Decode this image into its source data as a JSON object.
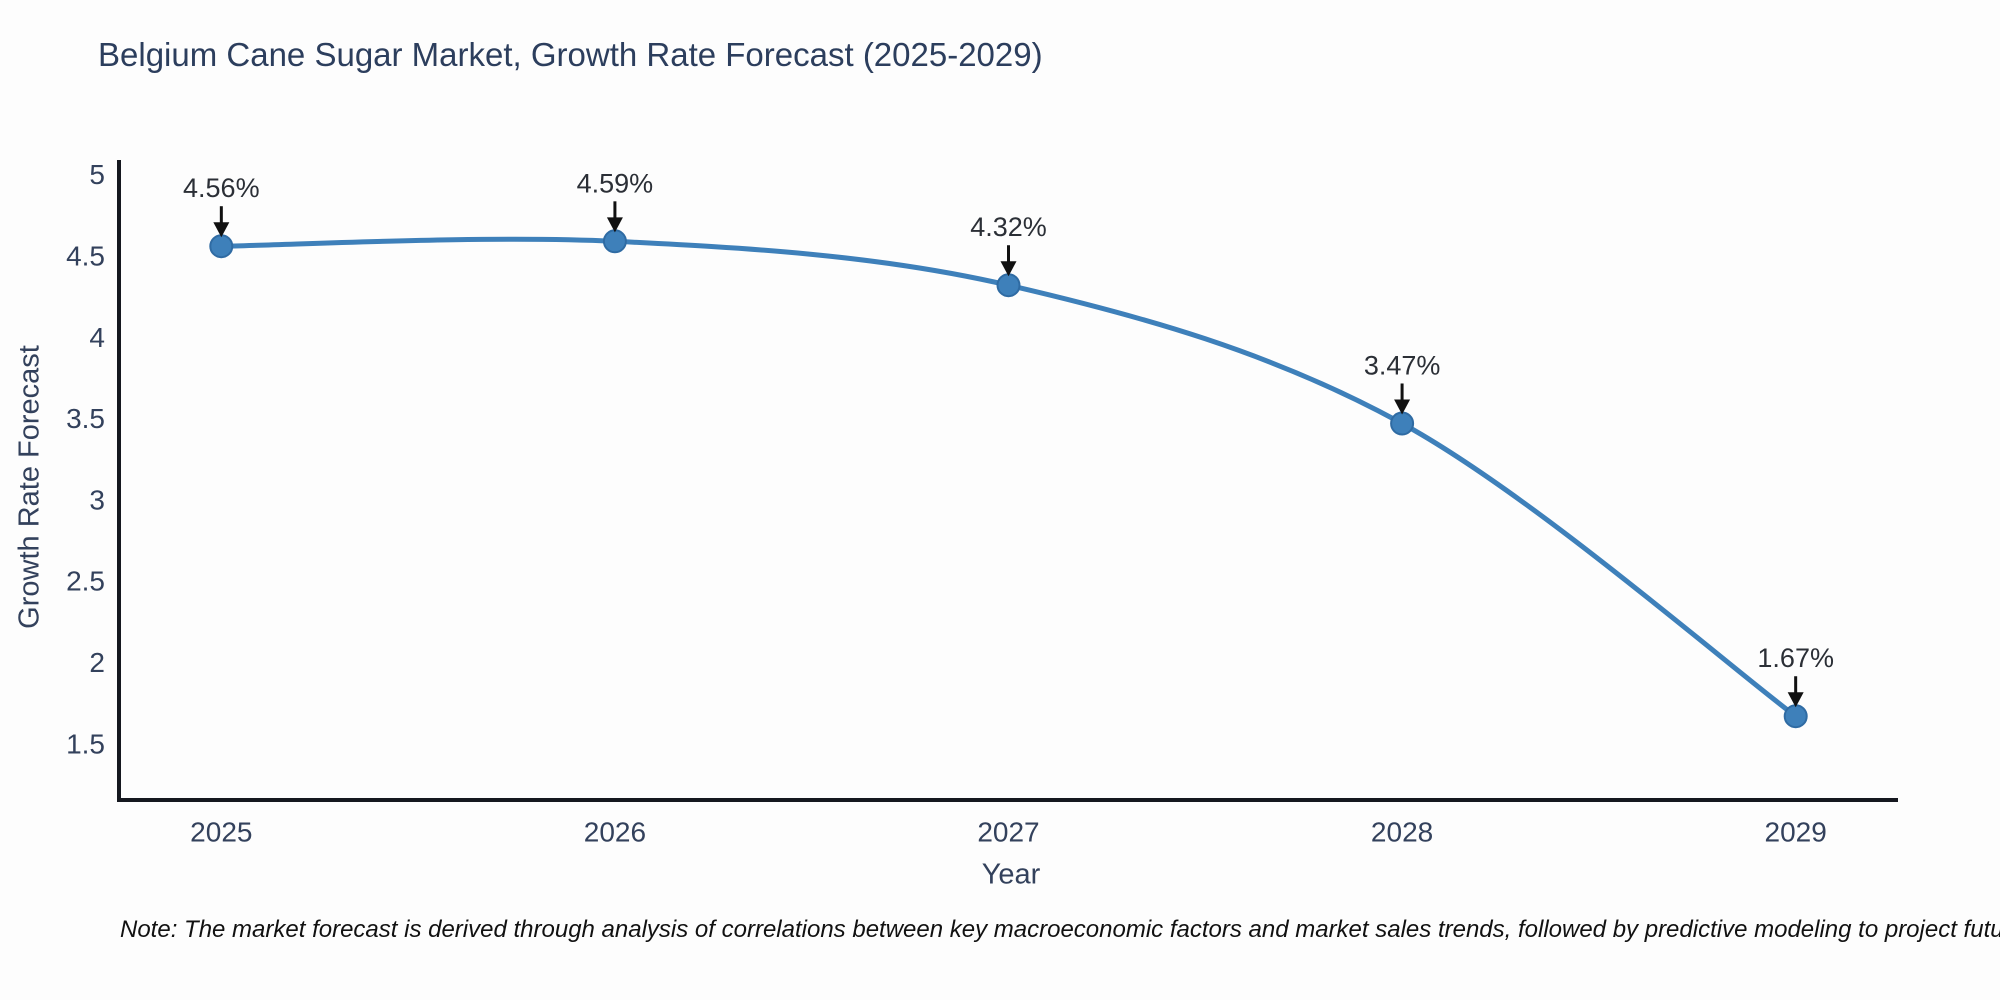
{
  "title": "Belgium Cane Sugar Market, Growth Rate Forecast (2025-2029)",
  "note": "Note: The market forecast is derived through analysis of correlations between key macroeconomic factors and market sales trends, followed by predictive modeling to project future sales",
  "chart_data": {
    "type": "line",
    "title": "Belgium Cane Sugar Market, Growth Rate Forecast (2025-2029)",
    "xlabel": "Year",
    "ylabel": "Growth Rate Forecast",
    "x": [
      2025,
      2026,
      2027,
      2028,
      2029
    ],
    "values": [
      4.56,
      4.59,
      4.32,
      3.47,
      1.67
    ],
    "point_labels": [
      "4.56%",
      "4.59%",
      "4.32%",
      "3.47%",
      "1.67%"
    ],
    "x_ticks": [
      "2025",
      "2026",
      "2027",
      "2028",
      "2029"
    ],
    "y_ticks": [
      1.5,
      2,
      2.5,
      3,
      3.5,
      4,
      4.5,
      5
    ],
    "x_range": [
      2024.74,
      2029.26
    ],
    "y_range": [
      1.155,
      5.09
    ],
    "line_shape": "spline",
    "grid": false,
    "legend_position": "none",
    "colors": {
      "line": "#3e80ba",
      "marker": "#3e80ba",
      "marker_edge": "#2f6ba3",
      "axis": "#15181f",
      "tick_text": "#33415c",
      "annotation_text": "#2b2f36",
      "arrow": "#111111",
      "background": "#fdfdfd"
    }
  }
}
